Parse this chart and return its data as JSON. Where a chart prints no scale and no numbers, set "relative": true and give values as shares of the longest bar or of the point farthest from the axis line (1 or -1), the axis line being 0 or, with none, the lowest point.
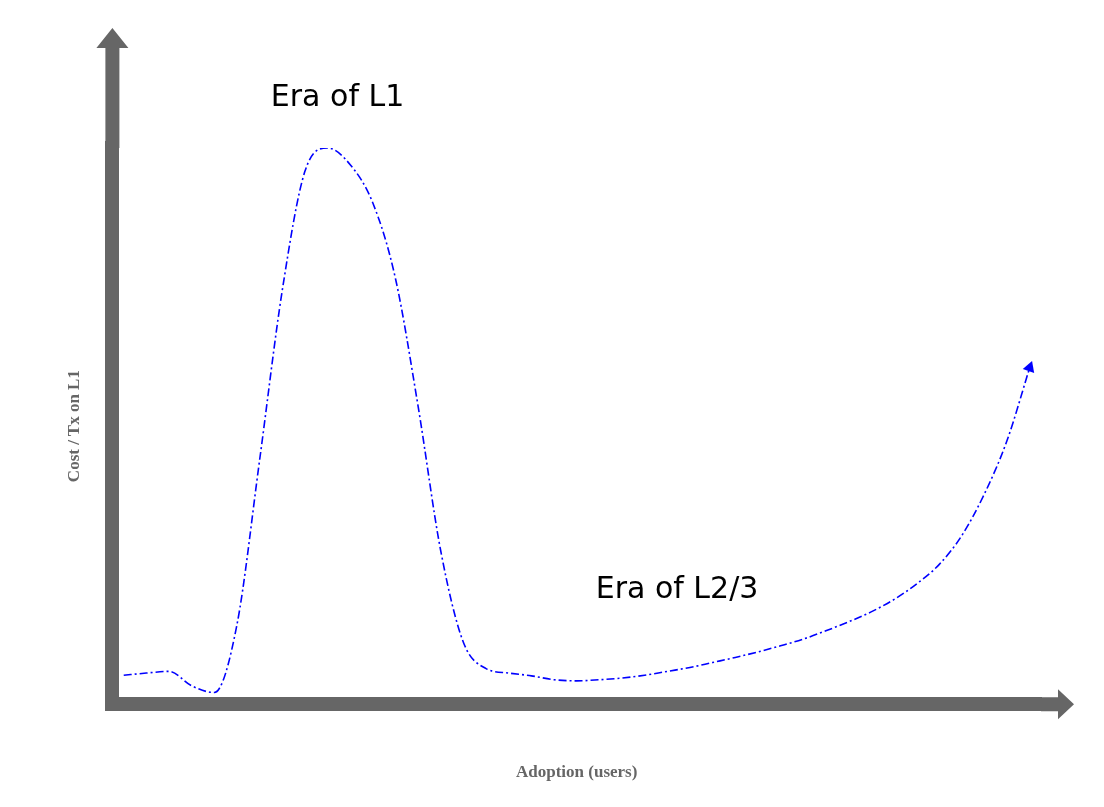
{
  "chart_data": {
    "type": "line",
    "relative": true,
    "xlabel": "Adoption (users)",
    "ylabel": "Cost / Tx on L1",
    "annotations": [
      "Era of L1",
      "Era of L2/3"
    ],
    "categories": [
      null,
      null,
      null,
      null,
      null,
      null,
      null,
      null,
      null,
      null,
      null,
      null,
      null,
      null,
      null,
      null,
      null,
      null,
      null,
      null,
      null,
      null,
      null,
      null,
      null,
      null,
      null,
      null,
      null,
      null,
      null,
      null,
      null,
      null,
      null,
      null,
      null,
      null,
      null,
      null,
      null
    ],
    "series": [
      {
        "color": "#0000ff",
        "values": [
          0.052,
          0.056,
          0.059,
          0.033,
          0.021,
          0.143,
          0.439,
          0.744,
          0.958,
          1,
          0.97,
          0.901,
          0.765,
          0.535,
          0.275,
          0.111,
          0.064,
          0.056,
          0.051,
          0.044,
          0.042,
          0.044,
          0.047,
          0.052,
          0.059,
          0.066,
          0.075,
          0.084,
          0.094,
          0.105,
          0.117,
          0.132,
          0.148,
          0.166,
          0.188,
          0.216,
          0.251,
          0.303,
          0.378,
          0.474,
          0.605
        ]
      }
    ],
    "line_style": "dashed",
    "marker": "none",
    "grid": false,
    "legend": false
  }
}
